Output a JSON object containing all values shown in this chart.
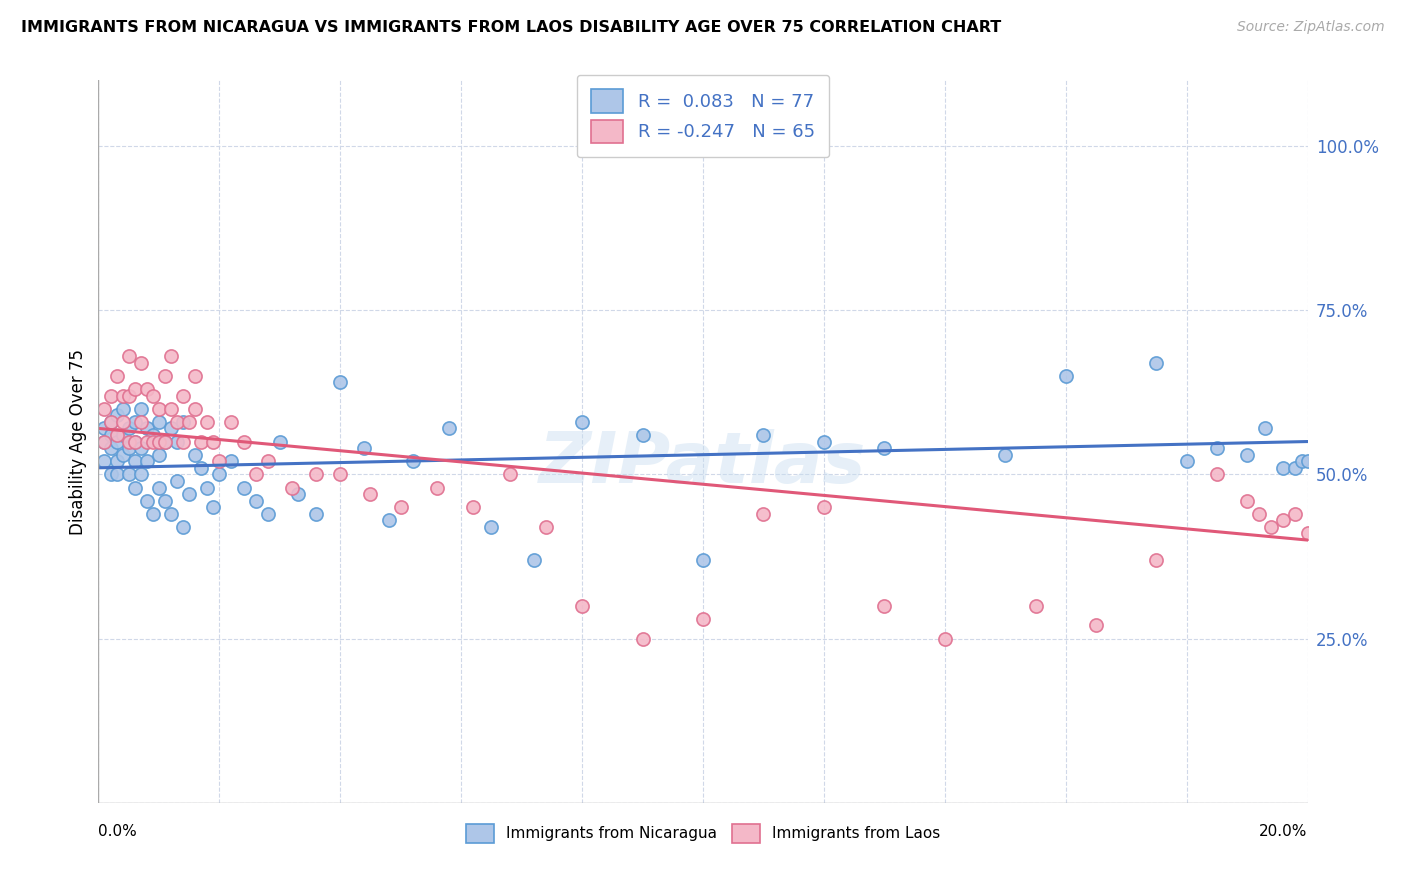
{
  "title": "IMMIGRANTS FROM NICARAGUA VS IMMIGRANTS FROM LAOS DISABILITY AGE OVER 75 CORRELATION CHART",
  "source": "Source: ZipAtlas.com",
  "ylabel": "Disability Age Over 75",
  "xmin": 0.0,
  "xmax": 0.2,
  "ymin": 0.0,
  "ymax": 1.1,
  "yticks": [
    0.0,
    0.25,
    0.5,
    0.75,
    1.0
  ],
  "ytick_labels": [
    "",
    "25.0%",
    "50.0%",
    "75.0%",
    "100.0%"
  ],
  "xtick_labels": [
    "0.0%",
    "",
    "",
    "",
    "",
    "",
    "",
    "",
    "",
    "",
    "20.0%"
  ],
  "r_nicaragua": 0.083,
  "n_nicaragua": 77,
  "r_laos": -0.247,
  "n_laos": 65,
  "color_nicaragua_fill": "#aec6e8",
  "color_nicaragua_edge": "#5b9bd5",
  "color_laos_fill": "#f4b8c8",
  "color_laos_edge": "#e07090",
  "color_nicaragua_line": "#4472c4",
  "color_laos_line": "#e05878",
  "color_r_text": "#4472c4",
  "watermark": "ZIPatlas",
  "nicaragua_x": [
    0.001,
    0.001,
    0.001,
    0.002,
    0.002,
    0.002,
    0.002,
    0.003,
    0.003,
    0.003,
    0.003,
    0.004,
    0.004,
    0.004,
    0.005,
    0.005,
    0.005,
    0.006,
    0.006,
    0.006,
    0.006,
    0.007,
    0.007,
    0.007,
    0.008,
    0.008,
    0.008,
    0.009,
    0.009,
    0.01,
    0.01,
    0.01,
    0.011,
    0.011,
    0.012,
    0.012,
    0.013,
    0.013,
    0.014,
    0.014,
    0.015,
    0.016,
    0.017,
    0.018,
    0.019,
    0.02,
    0.022,
    0.024,
    0.026,
    0.028,
    0.03,
    0.033,
    0.036,
    0.04,
    0.044,
    0.048,
    0.052,
    0.058,
    0.065,
    0.072,
    0.08,
    0.09,
    0.1,
    0.11,
    0.12,
    0.13,
    0.15,
    0.16,
    0.175,
    0.18,
    0.185,
    0.19,
    0.193,
    0.196,
    0.198,
    0.199,
    0.2
  ],
  "nicaragua_y": [
    0.55,
    0.52,
    0.57,
    0.5,
    0.54,
    0.58,
    0.56,
    0.52,
    0.55,
    0.59,
    0.5,
    0.53,
    0.56,
    0.6,
    0.5,
    0.54,
    0.57,
    0.48,
    0.52,
    0.55,
    0.58,
    0.5,
    0.54,
    0.6,
    0.46,
    0.52,
    0.57,
    0.44,
    0.56,
    0.48,
    0.53,
    0.58,
    0.46,
    0.55,
    0.44,
    0.57,
    0.49,
    0.55,
    0.42,
    0.58,
    0.47,
    0.53,
    0.51,
    0.48,
    0.45,
    0.5,
    0.52,
    0.48,
    0.46,
    0.44,
    0.55,
    0.47,
    0.44,
    0.64,
    0.54,
    0.43,
    0.52,
    0.57,
    0.42,
    0.37,
    0.58,
    0.56,
    0.37,
    0.56,
    0.55,
    0.54,
    0.53,
    0.65,
    0.67,
    0.52,
    0.54,
    0.53,
    0.57,
    0.51,
    0.51,
    0.52,
    0.52
  ],
  "laos_x": [
    0.001,
    0.001,
    0.002,
    0.002,
    0.003,
    0.003,
    0.004,
    0.004,
    0.005,
    0.005,
    0.005,
    0.006,
    0.006,
    0.007,
    0.007,
    0.008,
    0.008,
    0.009,
    0.009,
    0.01,
    0.01,
    0.011,
    0.011,
    0.012,
    0.012,
    0.013,
    0.014,
    0.014,
    0.015,
    0.016,
    0.016,
    0.017,
    0.018,
    0.019,
    0.02,
    0.022,
    0.024,
    0.026,
    0.028,
    0.032,
    0.036,
    0.04,
    0.045,
    0.05,
    0.056,
    0.062,
    0.068,
    0.074,
    0.08,
    0.09,
    0.1,
    0.11,
    0.12,
    0.13,
    0.14,
    0.155,
    0.165,
    0.175,
    0.185,
    0.19,
    0.192,
    0.194,
    0.196,
    0.198,
    0.2
  ],
  "laos_y": [
    0.6,
    0.55,
    0.62,
    0.58,
    0.65,
    0.56,
    0.62,
    0.58,
    0.55,
    0.62,
    0.68,
    0.55,
    0.63,
    0.58,
    0.67,
    0.55,
    0.63,
    0.55,
    0.62,
    0.55,
    0.6,
    0.55,
    0.65,
    0.6,
    0.68,
    0.58,
    0.55,
    0.62,
    0.58,
    0.6,
    0.65,
    0.55,
    0.58,
    0.55,
    0.52,
    0.58,
    0.55,
    0.5,
    0.52,
    0.48,
    0.5,
    0.5,
    0.47,
    0.45,
    0.48,
    0.45,
    0.5,
    0.42,
    0.3,
    0.25,
    0.28,
    0.44,
    0.45,
    0.3,
    0.25,
    0.3,
    0.27,
    0.37,
    0.5,
    0.46,
    0.44,
    0.42,
    0.43,
    0.44,
    0.41
  ]
}
